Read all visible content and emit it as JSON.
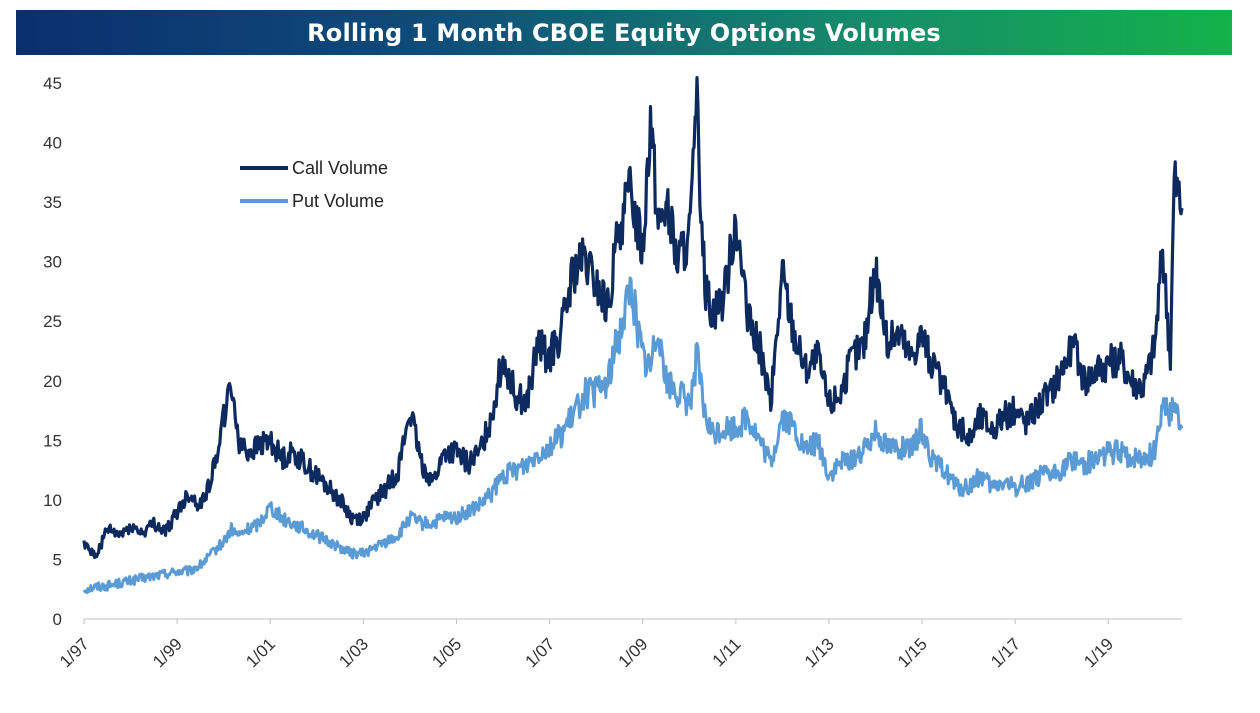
{
  "chart_data": {
    "type": "line",
    "title": "Rolling 1 Month CBOE Equity Options Volumes",
    "xlabel": "",
    "ylabel": "",
    "ylim": [
      0,
      45
    ],
    "xlim": [
      "1997-01",
      "2020-08"
    ],
    "y_ticks": [
      "0",
      "5",
      "10",
      "15",
      "20",
      "25",
      "30",
      "35",
      "40",
      "45"
    ],
    "x_ticks": [
      "1/97",
      "1/99",
      "1/01",
      "1/03",
      "1/05",
      "1/07",
      "1/09",
      "1/11",
      "1/13",
      "1/15",
      "1/17",
      "1/19"
    ],
    "grid": false,
    "legend_position": "top-left",
    "series": [
      {
        "name": "Call Volume",
        "color": "#0d2a5e",
        "x": [
          "1997-01",
          "1997-04",
          "1997-07",
          "1997-10",
          "1998-01",
          "1998-04",
          "1998-07",
          "1998-10",
          "1999-01",
          "1999-04",
          "1999-07",
          "1999-10",
          "2000-01",
          "2000-03",
          "2000-05",
          "2000-07",
          "2000-10",
          "2001-01",
          "2001-04",
          "2001-07",
          "2001-10",
          "2002-01",
          "2002-04",
          "2002-07",
          "2002-10",
          "2003-01",
          "2003-04",
          "2003-07",
          "2003-10",
          "2004-01",
          "2004-04",
          "2004-07",
          "2004-10",
          "2005-01",
          "2005-04",
          "2005-07",
          "2005-10",
          "2006-01",
          "2006-04",
          "2006-07",
          "2006-10",
          "2007-01",
          "2007-04",
          "2007-07",
          "2007-10",
          "2008-01",
          "2008-04",
          "2008-07",
          "2008-10",
          "2009-01",
          "2009-03",
          "2009-05",
          "2009-07",
          "2009-10",
          "2010-01",
          "2010-03",
          "2010-05",
          "2010-07",
          "2010-10",
          "2011-01",
          "2011-04",
          "2011-07",
          "2011-10",
          "2012-01",
          "2012-04",
          "2012-07",
          "2012-10",
          "2013-01",
          "2013-04",
          "2013-07",
          "2013-10",
          "2014-01",
          "2014-04",
          "2014-07",
          "2014-10",
          "2015-01",
          "2015-04",
          "2015-07",
          "2015-10",
          "2016-01",
          "2016-04",
          "2016-07",
          "2016-10",
          "2017-01",
          "2017-04",
          "2017-07",
          "2017-10",
          "2018-01",
          "2018-04",
          "2018-07",
          "2018-10",
          "2019-01",
          "2019-04",
          "2019-07",
          "2019-10",
          "2020-01",
          "2020-03",
          "2020-05",
          "2020-06",
          "2020-08"
        ],
        "values": [
          6.5,
          5.2,
          7.5,
          7.0,
          7.8,
          7.2,
          8.0,
          7.3,
          9.0,
          10.5,
          9.5,
          12.0,
          17.0,
          19.5,
          15.0,
          14.0,
          14.5,
          15.0,
          13.5,
          14.0,
          13.0,
          12.0,
          11.0,
          10.0,
          8.5,
          8.5,
          10.0,
          11.0,
          12.5,
          17.5,
          13.0,
          11.5,
          14.0,
          14.0,
          13.0,
          14.0,
          17.0,
          22.0,
          19.0,
          18.0,
          23.0,
          22.0,
          24.0,
          29.0,
          30.0,
          28.0,
          26.0,
          33.0,
          36.0,
          31.0,
          42.5,
          33.0,
          35.0,
          30.0,
          32.0,
          42.5,
          28.0,
          26.0,
          27.0,
          34.0,
          25.0,
          23.0,
          18.0,
          29.0,
          24.0,
          21.0,
          22.0,
          18.0,
          19.0,
          22.0,
          23.0,
          29.5,
          23.0,
          24.0,
          22.0,
          24.0,
          21.0,
          19.0,
          16.5,
          15.0,
          17.0,
          16.0,
          17.0,
          17.5,
          16.5,
          18.0,
          19.0,
          21.0,
          23.0,
          20.0,
          21.0,
          21.5,
          22.0,
          20.0,
          19.5,
          23.0,
          31.0,
          22.0,
          37.0,
          34.5
        ]
      },
      {
        "name": "Put Volume",
        "color": "#5b9bd5",
        "x": [
          "1997-01",
          "1997-04",
          "1997-07",
          "1997-10",
          "1998-01",
          "1998-04",
          "1998-07",
          "1998-10",
          "1999-01",
          "1999-04",
          "1999-07",
          "1999-10",
          "2000-01",
          "2000-03",
          "2000-05",
          "2000-07",
          "2000-10",
          "2001-01",
          "2001-04",
          "2001-07",
          "2001-10",
          "2002-01",
          "2002-04",
          "2002-07",
          "2002-10",
          "2003-01",
          "2003-04",
          "2003-07",
          "2003-10",
          "2004-01",
          "2004-04",
          "2004-07",
          "2004-10",
          "2005-01",
          "2005-04",
          "2005-07",
          "2005-10",
          "2006-01",
          "2006-04",
          "2006-07",
          "2006-10",
          "2007-01",
          "2007-04",
          "2007-07",
          "2007-10",
          "2008-01",
          "2008-04",
          "2008-07",
          "2008-10",
          "2009-01",
          "2009-03",
          "2009-05",
          "2009-07",
          "2009-10",
          "2010-01",
          "2010-03",
          "2010-05",
          "2010-07",
          "2010-10",
          "2011-01",
          "2011-04",
          "2011-07",
          "2011-10",
          "2012-01",
          "2012-04",
          "2012-07",
          "2012-10",
          "2013-01",
          "2013-04",
          "2013-07",
          "2013-10",
          "2014-01",
          "2014-04",
          "2014-07",
          "2014-10",
          "2015-01",
          "2015-04",
          "2015-07",
          "2015-10",
          "2016-01",
          "2016-04",
          "2016-07",
          "2016-10",
          "2017-01",
          "2017-04",
          "2017-07",
          "2017-10",
          "2018-01",
          "2018-04",
          "2018-07",
          "2018-10",
          "2019-01",
          "2019-04",
          "2019-07",
          "2019-10",
          "2020-01",
          "2020-03",
          "2020-05",
          "2020-06",
          "2020-08"
        ],
        "values": [
          2.5,
          2.7,
          2.8,
          3.0,
          3.2,
          3.4,
          3.6,
          3.8,
          4.0,
          4.0,
          4.5,
          5.5,
          6.5,
          7.5,
          7.0,
          7.5,
          8.0,
          9.5,
          8.5,
          8.0,
          7.5,
          7.0,
          6.5,
          6.0,
          5.5,
          5.5,
          6.0,
          6.5,
          7.0,
          8.5,
          8.0,
          8.0,
          8.5,
          8.5,
          9.0,
          9.5,
          10.5,
          12.0,
          12.5,
          13.0,
          14.0,
          14.5,
          15.5,
          17.0,
          19.0,
          19.0,
          20.0,
          24.0,
          28.0,
          22.0,
          21.0,
          25.0,
          20.0,
          19.0,
          18.0,
          22.0,
          17.0,
          15.5,
          16.0,
          16.0,
          17.0,
          15.0,
          13.0,
          17.0,
          16.0,
          14.0,
          15.0,
          12.0,
          13.0,
          13.5,
          14.0,
          16.0,
          14.5,
          14.5,
          14.0,
          16.0,
          13.0,
          12.5,
          11.0,
          11.0,
          12.0,
          11.0,
          11.5,
          11.0,
          11.5,
          12.0,
          12.0,
          12.5,
          13.5,
          13.0,
          13.5,
          14.0,
          14.0,
          13.5,
          13.5,
          14.0,
          18.5,
          17.0,
          18.0,
          16.0
        ]
      }
    ]
  }
}
